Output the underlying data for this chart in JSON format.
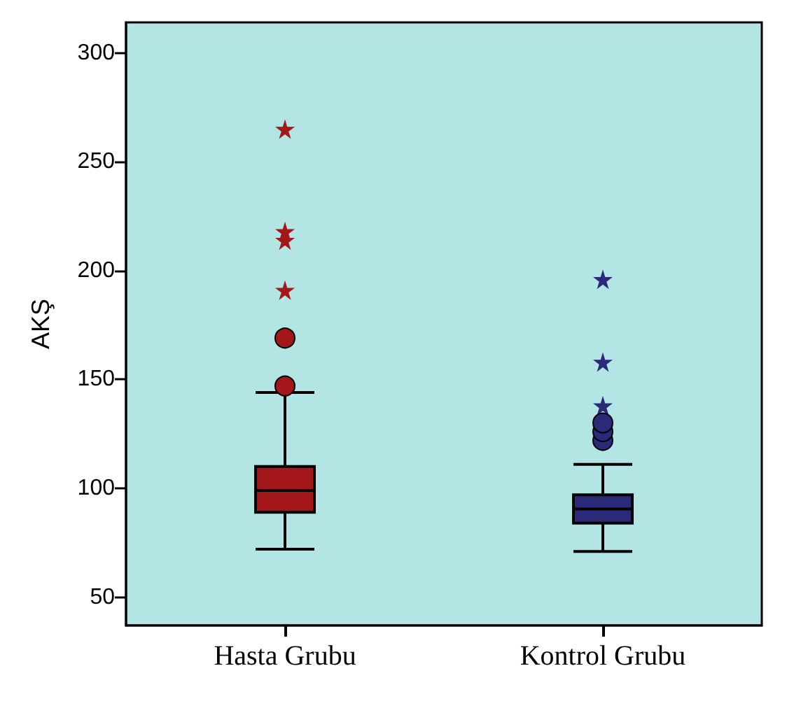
{
  "chart_data": {
    "type": "box",
    "ylabel": "AKŞ",
    "categories": [
      "Hasta Grubu",
      "Kontrol Grubu"
    ],
    "colors": [
      "#a3161a",
      "#2b2a7a"
    ],
    "boxes": [
      {
        "low": 72,
        "q1": 89,
        "median": 99,
        "q3": 110,
        "high": 144,
        "outliers": [
          147,
          169
        ]
      },
      {
        "low": 71,
        "q1": 84,
        "median": 90.5,
        "q3": 97,
        "high": 111,
        "outliers": [
          122,
          126,
          130
        ]
      }
    ],
    "series": [
      {
        "type": "scatter",
        "marker": "star",
        "x": [
          "Hasta Grubu",
          "Hasta Grubu",
          "Hasta Grubu",
          "Hasta Grubu",
          "Kontrol Grubu",
          "Kontrol Grubu",
          "Kontrol Grubu"
        ],
        "values": [
          265,
          218,
          214,
          191,
          196,
          158,
          138
        ],
        "colors": [
          "#a3161a",
          "#a3161a",
          "#a3161a",
          "#a3161a",
          "#2b2a7a",
          "#2b2a7a",
          "#2b2a7a"
        ]
      }
    ],
    "ylim": [
      37,
      314
    ],
    "yticks": [
      50,
      100,
      150,
      200,
      250,
      300
    ]
  }
}
